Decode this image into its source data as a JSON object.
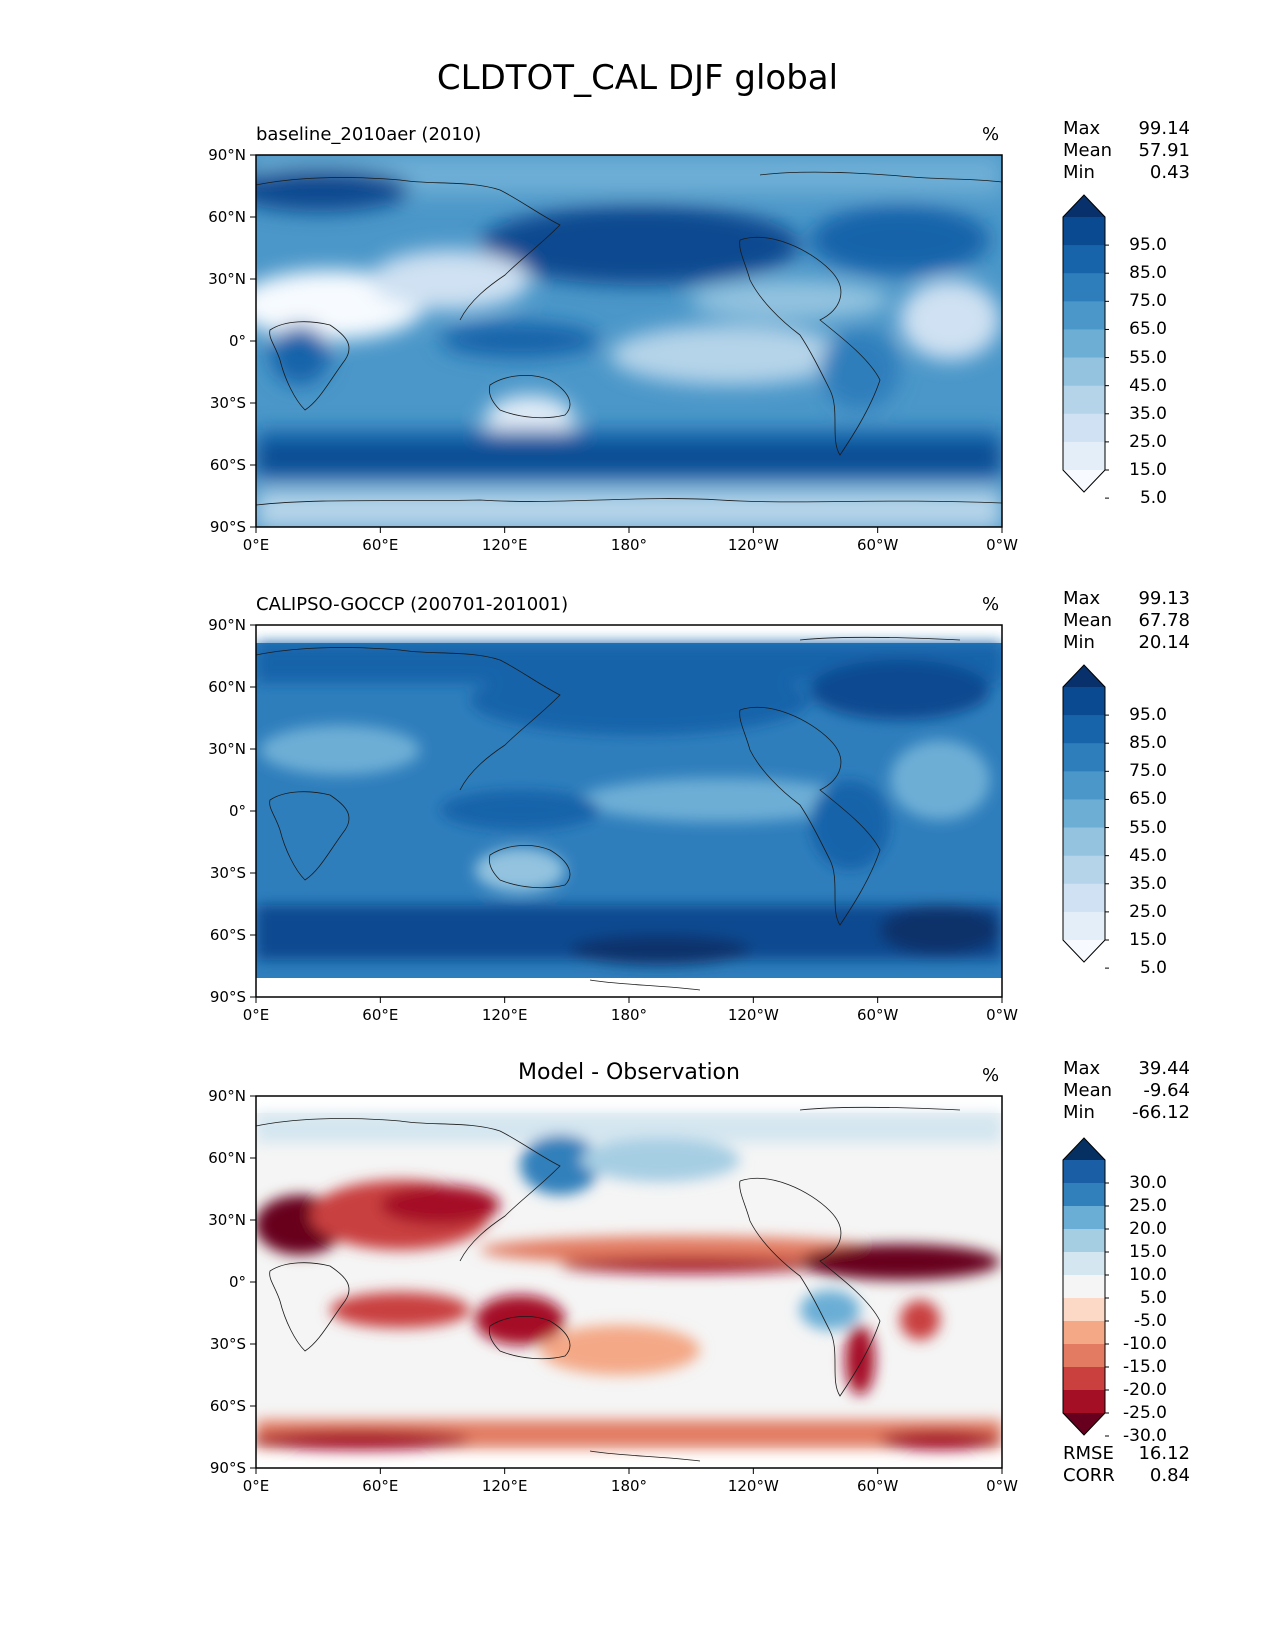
{
  "figure_title": "CLDTOT_CAL DJF global",
  "x_ticks": [
    "0°E",
    "60°E",
    "120°E",
    "180°",
    "120°W",
    "60°W",
    "0°W"
  ],
  "y_ticks": [
    "90°N",
    "60°N",
    "30°N",
    "0°",
    "30°S",
    "60°S",
    "90°S"
  ],
  "panels": [
    {
      "title": "baseline_2010aer (2010)",
      "units": "%",
      "stats": [
        {
          "label": "Max",
          "value": "99.14"
        },
        {
          "label": "Mean",
          "value": "57.91"
        },
        {
          "label": "Min",
          "value": "0.43"
        }
      ],
      "colorbar": {
        "colors": [
          "#f7fbff",
          "#e3eef8",
          "#cfe1f2",
          "#b5d4e9",
          "#93c3df",
          "#6daed5",
          "#4b97c9",
          "#2f7ebc",
          "#1864aa",
          "#0a4a90",
          "#08306b"
        ],
        "labels": [
          "95.0",
          "85.0",
          "75.0",
          "65.0",
          "55.0",
          "45.0",
          "35.0",
          "25.0",
          "15.0",
          "5.0"
        ]
      }
    },
    {
      "title": "CALIPSO-GOCCP (200701-201001)",
      "units": "%",
      "stats": [
        {
          "label": "Max",
          "value": "99.13"
        },
        {
          "label": "Mean",
          "value": "67.78"
        },
        {
          "label": "Min",
          "value": "20.14"
        }
      ],
      "colorbar": {
        "colors": [
          "#f7fbff",
          "#e3eef8",
          "#cfe1f2",
          "#b5d4e9",
          "#93c3df",
          "#6daed5",
          "#4b97c9",
          "#2f7ebc",
          "#1864aa",
          "#0a4a90",
          "#08306b"
        ],
        "labels": [
          "95.0",
          "85.0",
          "75.0",
          "65.0",
          "55.0",
          "45.0",
          "35.0",
          "25.0",
          "15.0",
          "5.0"
        ]
      }
    },
    {
      "title": "Model - Observation",
      "units": "%",
      "stats": [
        {
          "label": "Max",
          "value": "39.44"
        },
        {
          "label": "Mean",
          "value": "-9.64"
        },
        {
          "label": "Min",
          "value": "-66.12"
        }
      ],
      "extra_stats": [
        {
          "label": "RMSE",
          "value": "16.12"
        },
        {
          "label": "CORR",
          "value": "0.84"
        }
      ],
      "colorbar": {
        "colors": [
          "#67001f",
          "#a50f26",
          "#c9403f",
          "#e27b62",
          "#f4a886",
          "#fbd9c6",
          "#f5f5f5",
          "#d4e6f0",
          "#a6cee3",
          "#6aaed5",
          "#3280bb",
          "#1a5fa6",
          "#053061"
        ],
        "labels": [
          "30.0",
          "25.0",
          "20.0",
          "15.0",
          "10.0",
          "5.0",
          "-5.0",
          "-10.0",
          "-15.0",
          "-20.0",
          "-25.0",
          "-30.0"
        ]
      }
    }
  ]
}
